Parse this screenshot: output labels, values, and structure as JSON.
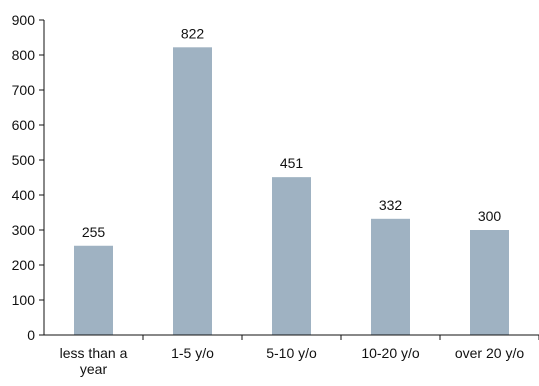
{
  "chart_data": {
    "type": "bar",
    "categories": [
      "less than a year",
      "1-5 y/o",
      "5-10 y/o",
      "10-20 y/o",
      "over 20 y/o"
    ],
    "category_lines": [
      [
        "less than a",
        "year"
      ],
      [
        "1-5 y/o"
      ],
      [
        "5-10 y/o"
      ],
      [
        "10-20 y/o"
      ],
      [
        "over 20 y/o"
      ]
    ],
    "values": [
      255,
      822,
      451,
      332,
      300
    ],
    "data_labels": [
      "255",
      "822",
      "451",
      "332",
      "300"
    ],
    "ylim": [
      0,
      900
    ],
    "yticks": [
      0,
      100,
      200,
      300,
      400,
      500,
      600,
      700,
      800,
      900
    ],
    "ytick_labels": [
      "0",
      "100",
      "200",
      "300",
      "400",
      "500",
      "600",
      "700",
      "800",
      "900"
    ],
    "title": "",
    "xlabel": "",
    "ylabel": "",
    "grid": false,
    "legend": "none",
    "colors": {
      "bar": "#9fb2c2",
      "axis": "#111111",
      "text": "#111111"
    }
  }
}
